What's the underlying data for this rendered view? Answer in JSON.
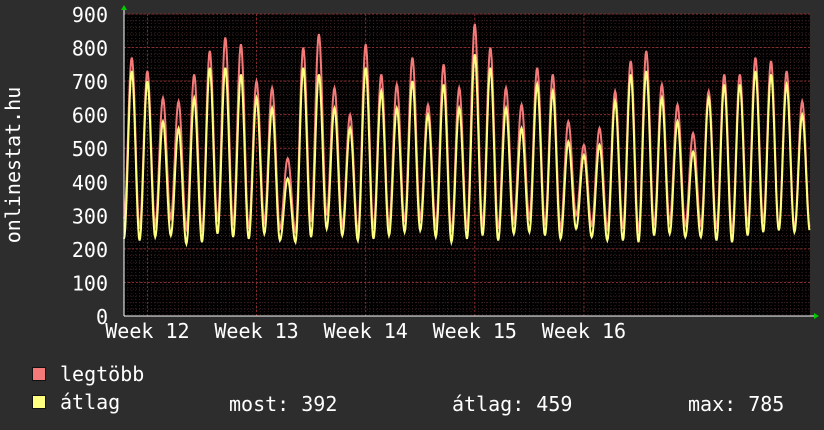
{
  "chart_data": {
    "type": "line",
    "title": "",
    "ylabel": "onlinestat.hu",
    "xlabel": "",
    "ylim": [
      0,
      900
    ],
    "yticks": [
      0,
      100,
      200,
      300,
      400,
      500,
      600,
      700,
      800,
      900
    ],
    "x_ticks": [
      "Week 12",
      "Week 13",
      "Week 14",
      "Week 15",
      "Week 16"
    ],
    "grid": true,
    "legend_position": "bottom-left",
    "background": "#2d2d2d",
    "plot_background": "#000000",
    "colors": {
      "legtobb": "#f47a7a",
      "atlag": "#ffff80",
      "grid": "#ff5050"
    },
    "day_peaks_max": [
      770,
      730,
      650,
      640,
      720,
      790,
      830,
      810,
      700,
      680,
      470,
      800,
      840,
      680,
      600,
      810,
      720,
      690,
      770,
      630,
      750,
      680,
      870,
      800,
      680,
      630,
      740,
      720,
      580,
      510,
      560,
      670,
      760,
      790,
      690,
      630,
      545,
      670,
      720,
      720,
      770,
      760,
      730,
      640
    ],
    "day_peaks_avg": [
      730,
      700,
      580,
      560,
      650,
      740,
      740,
      720,
      650,
      620,
      410,
      740,
      720,
      620,
      560,
      740,
      670,
      620,
      700,
      600,
      690,
      620,
      780,
      740,
      620,
      560,
      690,
      670,
      520,
      480,
      510,
      640,
      720,
      730,
      650,
      580,
      490,
      650,
      690,
      690,
      730,
      720,
      690,
      600
    ],
    "day_troughs_max": [
      290,
      260,
      270,
      290,
      260,
      250,
      280,
      270,
      260,
      280,
      260,
      250,
      280,
      300,
      270,
      250,
      260,
      270,
      280,
      290,
      270,
      250,
      260,
      270,
      260,
      280,
      290,
      270,
      260,
      300,
      270,
      260,
      260,
      250,
      270,
      280,
      270,
      270,
      260,
      250,
      270,
      280,
      260,
      260
    ],
    "day_troughs_avg": [
      230,
      225,
      235,
      240,
      215,
      220,
      245,
      235,
      230,
      245,
      225,
      220,
      235,
      260,
      240,
      225,
      230,
      240,
      250,
      255,
      235,
      220,
      230,
      240,
      225,
      245,
      250,
      240,
      230,
      260,
      235,
      225,
      225,
      220,
      240,
      245,
      235,
      235,
      225,
      220,
      240,
      250,
      255,
      250
    ],
    "series": [
      {
        "name": "legtöbb",
        "key": "max"
      },
      {
        "name": "átlag",
        "key": "avg"
      }
    ]
  },
  "legend": {
    "items": [
      {
        "label": "legtöbb",
        "color": "#f47a7a"
      },
      {
        "label": "átlag",
        "color": "#ffff80"
      }
    ]
  },
  "stats": {
    "current": "most: 392",
    "average": "átlag: 459",
    "maximum": "max: 785"
  }
}
